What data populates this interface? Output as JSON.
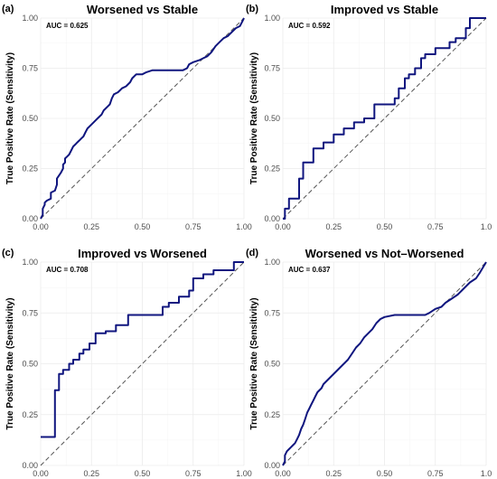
{
  "chart_data": [
    {
      "type": "line",
      "panel_label": "(a)",
      "title": "Worsened vs Stable",
      "ylabel": "True Positive Rate (Sensitivity)",
      "xlabel": "",
      "annotation": "AUC = 0.625",
      "xlim": [
        0,
        1
      ],
      "ylim": [
        0,
        1
      ],
      "x_ticks": [
        "0.00",
        "0.25",
        "0.50",
        "0.75",
        "1.00"
      ],
      "y_ticks": [
        "0.00",
        "0.25",
        "0.50",
        "0.75",
        "1.00"
      ],
      "grid": true,
      "series": [
        {
          "x": [
            0,
            0.01,
            0.01,
            0.02,
            0.02,
            0.03,
            0.05,
            0.05,
            0.07,
            0.08,
            0.08,
            0.1,
            0.11,
            0.11,
            0.12,
            0.12,
            0.13,
            0.14,
            0.15,
            0.16,
            0.17,
            0.18,
            0.19,
            0.2,
            0.21,
            0.22,
            0.23,
            0.25,
            0.27,
            0.28,
            0.3,
            0.31,
            0.33,
            0.34,
            0.35,
            0.36,
            0.38,
            0.39,
            0.4,
            0.42,
            0.44,
            0.45,
            0.47,
            0.48,
            0.5,
            0.52,
            0.55,
            0.58,
            0.61,
            0.64,
            0.67,
            0.7,
            0.72,
            0.73,
            0.75,
            0.78,
            0.8,
            0.82,
            0.84,
            0.86,
            0.88,
            0.9,
            0.92,
            0.94,
            0.96,
            0.98,
            0.99,
            1.0
          ],
          "y": [
            0,
            0.02,
            0.05,
            0.07,
            0.08,
            0.09,
            0.1,
            0.13,
            0.14,
            0.17,
            0.2,
            0.23,
            0.25,
            0.27,
            0.28,
            0.3,
            0.31,
            0.32,
            0.34,
            0.36,
            0.37,
            0.38,
            0.39,
            0.4,
            0.41,
            0.43,
            0.45,
            0.47,
            0.49,
            0.5,
            0.52,
            0.54,
            0.56,
            0.57,
            0.6,
            0.62,
            0.63,
            0.64,
            0.65,
            0.66,
            0.68,
            0.7,
            0.72,
            0.72,
            0.72,
            0.73,
            0.74,
            0.74,
            0.74,
            0.74,
            0.74,
            0.74,
            0.75,
            0.77,
            0.78,
            0.79,
            0.8,
            0.81,
            0.83,
            0.86,
            0.88,
            0.9,
            0.91,
            0.93,
            0.95,
            0.96,
            0.98,
            1.0
          ]
        }
      ]
    },
    {
      "type": "line",
      "panel_label": "(b)",
      "title": "Improved vs Stable",
      "ylabel": "True Positive Rate (Sensitivity)",
      "xlabel": "",
      "annotation": "AUC = 0.592",
      "xlim": [
        0,
        1
      ],
      "ylim": [
        0,
        1
      ],
      "x_ticks": [
        "0.00",
        "0.25",
        "0.50",
        "0.75",
        "1.0"
      ],
      "y_ticks": [
        "0.00",
        "0.25",
        "0.50",
        "0.75",
        "1.00"
      ],
      "grid": true,
      "series": [
        {
          "x": [
            0,
            0.01,
            0.01,
            0.03,
            0.03,
            0.08,
            0.08,
            0.1,
            0.1,
            0.15,
            0.15,
            0.2,
            0.2,
            0.25,
            0.25,
            0.3,
            0.3,
            0.35,
            0.35,
            0.4,
            0.4,
            0.45,
            0.45,
            0.55,
            0.55,
            0.57,
            0.57,
            0.6,
            0.6,
            0.62,
            0.62,
            0.65,
            0.65,
            0.68,
            0.68,
            0.7,
            0.7,
            0.75,
            0.75,
            0.82,
            0.82,
            0.85,
            0.85,
            0.9,
            0.9,
            0.92,
            0.92,
            1.0
          ],
          "y": [
            0,
            0,
            0.05,
            0.05,
            0.1,
            0.1,
            0.2,
            0.2,
            0.28,
            0.28,
            0.35,
            0.35,
            0.38,
            0.38,
            0.42,
            0.42,
            0.45,
            0.45,
            0.48,
            0.48,
            0.5,
            0.5,
            0.57,
            0.57,
            0.6,
            0.6,
            0.65,
            0.65,
            0.7,
            0.7,
            0.72,
            0.72,
            0.75,
            0.75,
            0.8,
            0.8,
            0.82,
            0.82,
            0.85,
            0.85,
            0.88,
            0.88,
            0.9,
            0.9,
            0.95,
            0.95,
            1.0,
            1.0
          ]
        }
      ]
    },
    {
      "type": "line",
      "panel_label": "(c)",
      "title": "Improved vs Worsened",
      "ylabel": "True Positive Rate (Sensitivity)",
      "xlabel": "",
      "annotation": "AUC = 0.708",
      "xlim": [
        0,
        1
      ],
      "ylim": [
        0,
        1
      ],
      "x_ticks": [
        "0.00",
        "0.25",
        "0.50",
        "0.75",
        "1.00"
      ],
      "y_ticks": [
        "0.00",
        "0.25",
        "0.50",
        "0.75",
        "1.00"
      ],
      "grid": true,
      "series": [
        {
          "x": [
            0,
            0.07,
            0.07,
            0.09,
            0.09,
            0.11,
            0.11,
            0.14,
            0.14,
            0.16,
            0.16,
            0.19,
            0.19,
            0.21,
            0.21,
            0.24,
            0.24,
            0.27,
            0.27,
            0.32,
            0.32,
            0.37,
            0.37,
            0.43,
            0.43,
            0.6,
            0.6,
            0.63,
            0.63,
            0.68,
            0.68,
            0.73,
            0.73,
            0.75,
            0.75,
            0.8,
            0.8,
            0.85,
            0.85,
            0.95,
            0.95,
            1.0
          ],
          "y": [
            0.14,
            0.14,
            0.37,
            0.37,
            0.45,
            0.45,
            0.47,
            0.47,
            0.5,
            0.5,
            0.52,
            0.52,
            0.55,
            0.55,
            0.57,
            0.57,
            0.6,
            0.6,
            0.65,
            0.65,
            0.66,
            0.66,
            0.69,
            0.69,
            0.74,
            0.74,
            0.78,
            0.78,
            0.8,
            0.8,
            0.83,
            0.83,
            0.86,
            0.86,
            0.92,
            0.92,
            0.94,
            0.94,
            0.96,
            0.96,
            1.0,
            1.0
          ]
        }
      ]
    },
    {
      "type": "line",
      "panel_label": "(d)",
      "title": "Worsened vs Not–Worsened",
      "ylabel": "True Positive Rate (Sensitivity)",
      "xlabel": "",
      "annotation": "AUC = 0.637",
      "xlim": [
        0,
        1
      ],
      "ylim": [
        0,
        1
      ],
      "x_ticks": [
        "0.00",
        "0.25",
        "0.50",
        "0.75",
        "1.0"
      ],
      "y_ticks": [
        "0.00",
        "0.25",
        "0.50",
        "0.75",
        "1.00"
      ],
      "grid": true,
      "series": [
        {
          "x": [
            0,
            0.01,
            0.01,
            0.02,
            0.03,
            0.04,
            0.05,
            0.06,
            0.07,
            0.08,
            0.09,
            0.1,
            0.11,
            0.12,
            0.13,
            0.14,
            0.15,
            0.16,
            0.17,
            0.19,
            0.2,
            0.22,
            0.24,
            0.26,
            0.28,
            0.3,
            0.32,
            0.34,
            0.36,
            0.38,
            0.4,
            0.42,
            0.44,
            0.46,
            0.48,
            0.5,
            0.55,
            0.6,
            0.65,
            0.7,
            0.72,
            0.75,
            0.78,
            0.8,
            0.83,
            0.86,
            0.88,
            0.9,
            0.92,
            0.95,
            0.97,
            1.0
          ],
          "y": [
            0,
            0.02,
            0.05,
            0.07,
            0.08,
            0.09,
            0.1,
            0.11,
            0.13,
            0.15,
            0.18,
            0.2,
            0.23,
            0.26,
            0.28,
            0.3,
            0.32,
            0.34,
            0.36,
            0.38,
            0.4,
            0.42,
            0.44,
            0.46,
            0.48,
            0.5,
            0.52,
            0.55,
            0.58,
            0.6,
            0.63,
            0.65,
            0.67,
            0.7,
            0.72,
            0.73,
            0.74,
            0.74,
            0.74,
            0.74,
            0.75,
            0.77,
            0.78,
            0.8,
            0.82,
            0.84,
            0.86,
            0.88,
            0.9,
            0.92,
            0.95,
            1.0
          ]
        }
      ]
    }
  ]
}
